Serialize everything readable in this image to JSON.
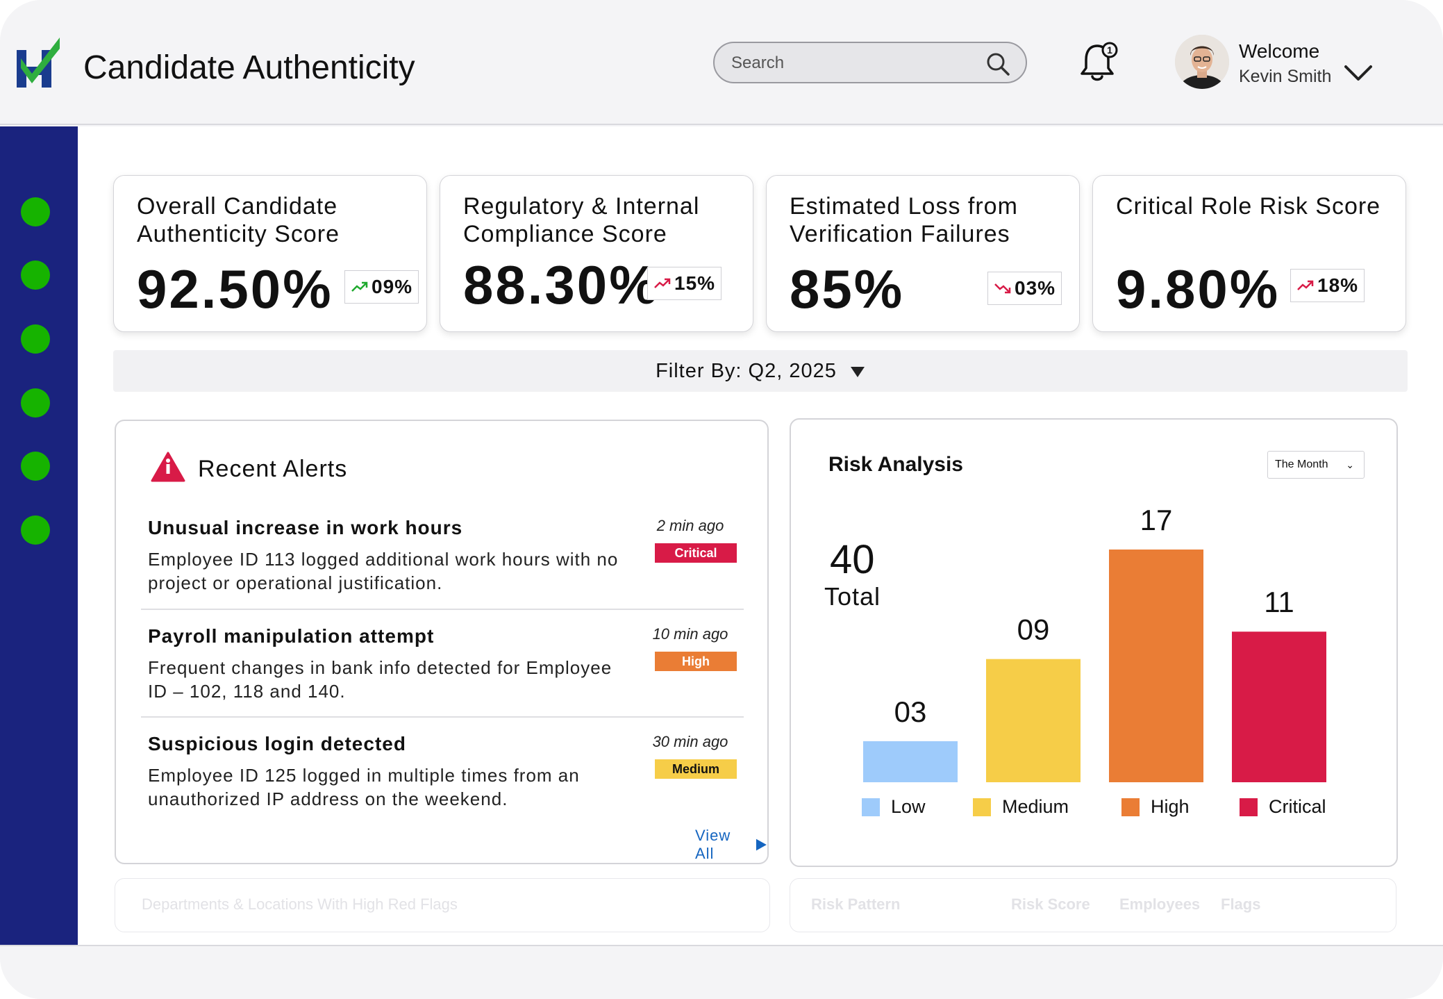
{
  "header": {
    "app_title": "Candidate Authenticity",
    "search_placeholder": "Search",
    "welcome": "Welcome",
    "user_name": "Kevin Smith",
    "notification_count": "1"
  },
  "sidebar": {
    "items": 6,
    "dot_color": "#16b300"
  },
  "kpis": [
    {
      "title": "Overall Candidate Authenticity Score",
      "value": "92.50%",
      "change": "09%",
      "trend": "up"
    },
    {
      "title": "Regulatory & Internal Compliance Score",
      "value": "88.30%",
      "change": "15%",
      "trend": "up"
    },
    {
      "title": "Estimated Loss from Verification Failures",
      "value": "85%",
      "change": "03%",
      "trend": "down"
    },
    {
      "title": "Critical Role Risk Score",
      "value": "9.80%",
      "change": "18%",
      "trend": "up"
    }
  ],
  "filter": {
    "label": "Filter By: Q2, 2025"
  },
  "alerts": {
    "title": "Recent Alerts",
    "view_all": "View All",
    "items": [
      {
        "title": "Unusual increase in work hours",
        "description": "Employee ID 113 logged additional work hours with no project or operational justification.",
        "time": "2 min ago",
        "severity": "Critical",
        "color": "#d81b47"
      },
      {
        "title": "Payroll manipulation attempt",
        "description": "Frequent changes in bank info detected for Employee ID – 102, 118 and 140.",
        "time": "10 min ago",
        "severity": "High",
        "color": "#ea7d35"
      },
      {
        "title": "Suspicious login detected",
        "description": "Employee ID 125 logged in multiple times from an unauthorized IP address on the weekend.",
        "time": "30 min ago",
        "severity": "Medium",
        "color": "#f6cd48"
      }
    ]
  },
  "risk_analysis": {
    "title": "Risk Analysis",
    "period": "The Month",
    "total_value": "40",
    "total_label": "Total"
  },
  "chart_data": {
    "type": "bar",
    "categories": [
      "Low",
      "Medium",
      "High",
      "Critical"
    ],
    "values": [
      3,
      9,
      17,
      11
    ],
    "value_labels": [
      "03",
      "09",
      "17",
      "11"
    ],
    "colors": [
      "#9ecbfb",
      "#f6cd48",
      "#ea7d35",
      "#d81b47"
    ],
    "ylim": [
      0,
      17
    ],
    "legend_position": "bottom",
    "grid": false
  },
  "lower_panels": {
    "departments_title": "Departments & Locations With High Red Flags",
    "risk_table_headers": [
      "Risk Pattern",
      "Risk Score",
      "Employees",
      "Flags"
    ]
  }
}
